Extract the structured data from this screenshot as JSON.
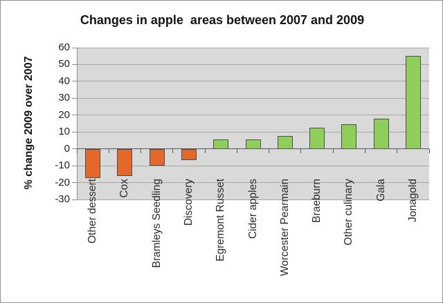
{
  "title": "Changes in apple  areas between 2007 and 2009",
  "y_axis": {
    "title": "% change 2009 over 2007",
    "ticks": [
      60,
      50,
      40,
      30,
      20,
      10,
      0,
      -10,
      -20,
      -30
    ]
  },
  "chart_data": {
    "type": "bar",
    "title": "Changes in apple  areas between 2007 and 2009",
    "xlabel": "",
    "ylabel": "% change 2009 over 2007",
    "ylim": [
      -30,
      60
    ],
    "y_tick_step": 10,
    "grid": true,
    "legend": "none",
    "categories": [
      "Other dessert",
      "Cox",
      "Bramleys Seedling",
      "Discovery",
      "Egremont Russet",
      "Cider apples",
      "Worcester Pearmain",
      "Braeburn",
      "Other culinary",
      "Gala",
      "Jonagold"
    ],
    "values": [
      -17.5,
      -16,
      -10,
      -6.5,
      5.5,
      5.5,
      7.5,
      12.5,
      14.5,
      18,
      55
    ],
    "colors": {
      "positive_bar": "#8FCE5B",
      "negative_bar": "#E2692B",
      "bar_border": "#4D4D4D",
      "plot_background": "#D9D9D9",
      "gridline": "#A6A6A6",
      "axis_line": "#8F8F8F",
      "zero_line": "#595959",
      "text": "#141414"
    }
  }
}
